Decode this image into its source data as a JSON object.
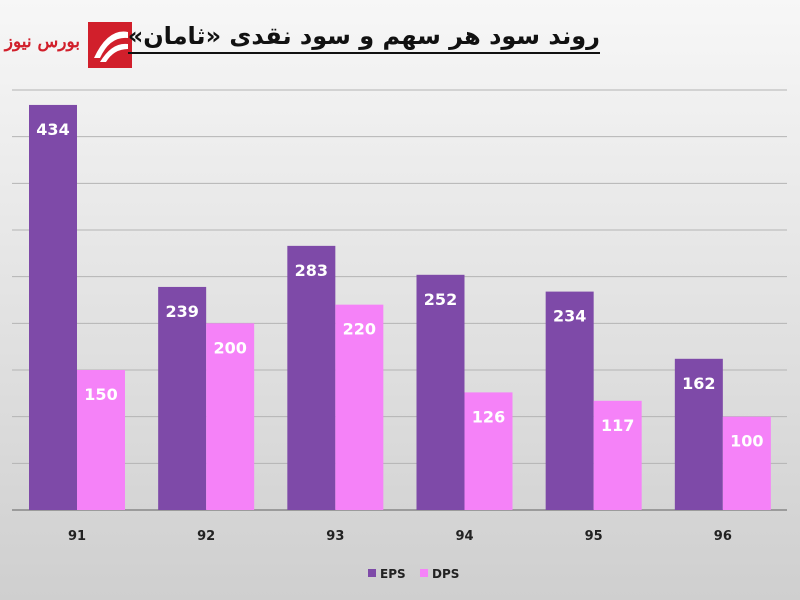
{
  "logo": {
    "text": "بورس نیوز"
  },
  "chart_data": {
    "type": "bar",
    "title": "روند سود هر سهم و سود نقدی «ثامان»",
    "categories": [
      "91",
      "92",
      "93",
      "94",
      "95",
      "96"
    ],
    "series": [
      {
        "name": "EPS",
        "values": [
          434,
          239,
          283,
          252,
          234,
          162
        ]
      },
      {
        "name": "DPS",
        "values": [
          150,
          200,
          220,
          126,
          117,
          100
        ]
      }
    ],
    "ylim": [
      0,
      450
    ],
    "grid": true,
    "legend": "bottom",
    "colors": {
      "EPS": "#7e4aa8",
      "DPS": "#f582f8"
    }
  }
}
